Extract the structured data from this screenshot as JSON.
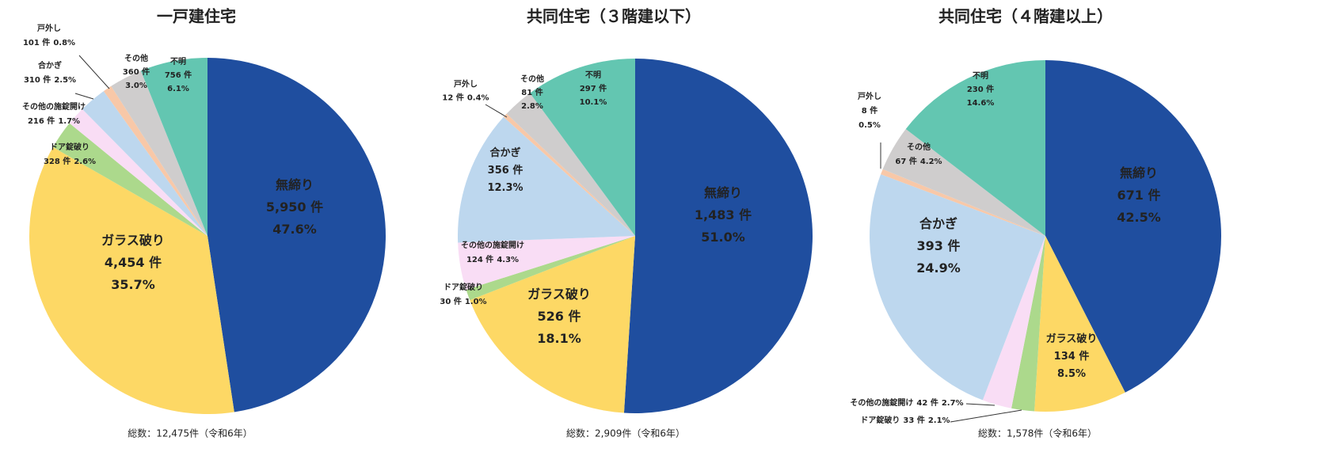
{
  "chart_data": [
    {
      "type": "pie",
      "title": "一戸建住宅",
      "total": "総数：12,475件（令和6年）",
      "categories": [
        "無締り",
        "ガラス破り",
        "ドア錠破り",
        "その他の施錠開け",
        "合かぎ",
        "戸外し",
        "その他",
        "不明"
      ],
      "values": [
        47.6,
        35.7,
        2.6,
        1.7,
        2.5,
        0.8,
        3.0,
        6.1
      ],
      "value_labels": [
        "47.6%",
        "35.7%",
        "2.6%",
        "1.7%",
        "2.5%",
        "0.8%",
        "3.0%",
        "6.1%"
      ],
      "count_labels": [
        "5,950 件",
        "4,454 件",
        "328 件",
        "216 件",
        "310 件",
        "101 件",
        "360 件",
        "756 件"
      ],
      "colors": [
        "#1f4e9f",
        "#fdd865",
        "#acd98c",
        "#f9ddf5",
        "#bdd7ee",
        "#f8c8a8",
        "#cfcdcd",
        "#63c6b1"
      ]
    },
    {
      "type": "pie",
      "title": "共同住宅（３階建以下）",
      "total": "総数：2,909件（令和6年）",
      "categories": [
        "無締り",
        "ガラス破り",
        "ドア錠破り",
        "その他の施錠開け",
        "合かぎ",
        "戸外し",
        "その他",
        "不明"
      ],
      "values": [
        51.0,
        18.1,
        1.0,
        4.3,
        12.3,
        0.4,
        2.8,
        10.1
      ],
      "value_labels": [
        "51.0%",
        "18.1%",
        "1.0%",
        "4.3%",
        "12.3%",
        "0.4%",
        "2.8%",
        "10.1%"
      ],
      "count_labels": [
        "1,483 件",
        "526 件",
        "30 件",
        "124 件",
        "356 件",
        "12 件",
        "81 件",
        "297 件"
      ],
      "colors": [
        "#1f4e9f",
        "#fdd865",
        "#acd98c",
        "#f9ddf5",
        "#bdd7ee",
        "#f8c8a8",
        "#cfcdcd",
        "#63c6b1"
      ]
    },
    {
      "type": "pie",
      "title": "共同住宅（４階建以上）",
      "total": "総数：1,578件（令和6年）",
      "categories": [
        "無締り",
        "ガラス破り",
        "ドア錠破り",
        "その他の施錠開け",
        "合かぎ",
        "戸外し",
        "その他",
        "不明"
      ],
      "values": [
        42.5,
        8.5,
        2.1,
        2.7,
        24.9,
        0.5,
        4.2,
        14.6
      ],
      "value_labels": [
        "42.5%",
        "8.5%",
        "2.1%",
        "2.7%",
        "24.9%",
        "0.5%",
        "4.2%",
        "14.6%"
      ],
      "count_labels": [
        "671 件",
        "134 件",
        "33 件",
        "42 件",
        "393 件",
        "8 件",
        "67 件",
        "230 件"
      ],
      "colors": [
        "#1f4e9f",
        "#fdd865",
        "#acd98c",
        "#f9ddf5",
        "#bdd7ee",
        "#f8c8a8",
        "#cfcdcd",
        "#63c6b1"
      ]
    }
  ]
}
